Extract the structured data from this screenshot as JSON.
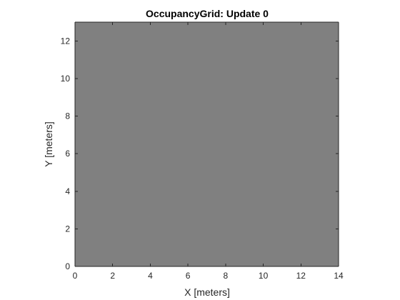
{
  "chart_data": {
    "type": "heatmap",
    "title": "OccupancyGrid: Update 0",
    "xlabel": "X [meters]",
    "ylabel": "Y [meters]",
    "xlim": [
      0,
      14
    ],
    "ylim": [
      0,
      13
    ],
    "xticks": [
      0,
      2,
      4,
      6,
      8,
      10,
      12,
      14
    ],
    "yticks": [
      0,
      2,
      4,
      6,
      8,
      10,
      12
    ],
    "grid": false,
    "occupancy_value": 0.5,
    "colors": {
      "cell_fill": "#808080",
      "axis": "#262626",
      "background": "#ffffff"
    }
  }
}
